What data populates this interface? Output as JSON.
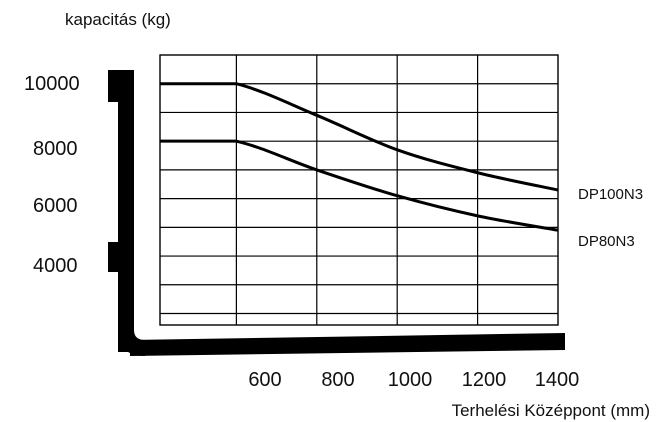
{
  "chart_data": {
    "type": "line",
    "title": "",
    "ylabel": "kapacitás (kg)",
    "xlabel": "Terhelési Középpont (mm)",
    "x_ticks": [
      "600",
      "800",
      "1000",
      "1200",
      "1400"
    ],
    "y_ticks": [
      "10000",
      "8000",
      "6000",
      "4000"
    ],
    "xlim": [
      600,
      1400
    ],
    "ylim": [
      1600,
      11000
    ],
    "grid": true,
    "series": [
      {
        "name": "DP100N3",
        "x": [
          600,
          800,
          1000,
          1200,
          1400
        ],
        "y": [
          10000,
          8900,
          7700,
          6900,
          6300
        ]
      },
      {
        "name": "DP80N3",
        "x": [
          600,
          800,
          1000,
          1200,
          1400
        ],
        "y": [
          8000,
          7000,
          6100,
          5400,
          4900
        ]
      }
    ]
  },
  "colors": {
    "ink": "#000000",
    "background": "#ffffff"
  },
  "icons": {
    "forklift_silhouette": "forklift-fork-icon"
  }
}
